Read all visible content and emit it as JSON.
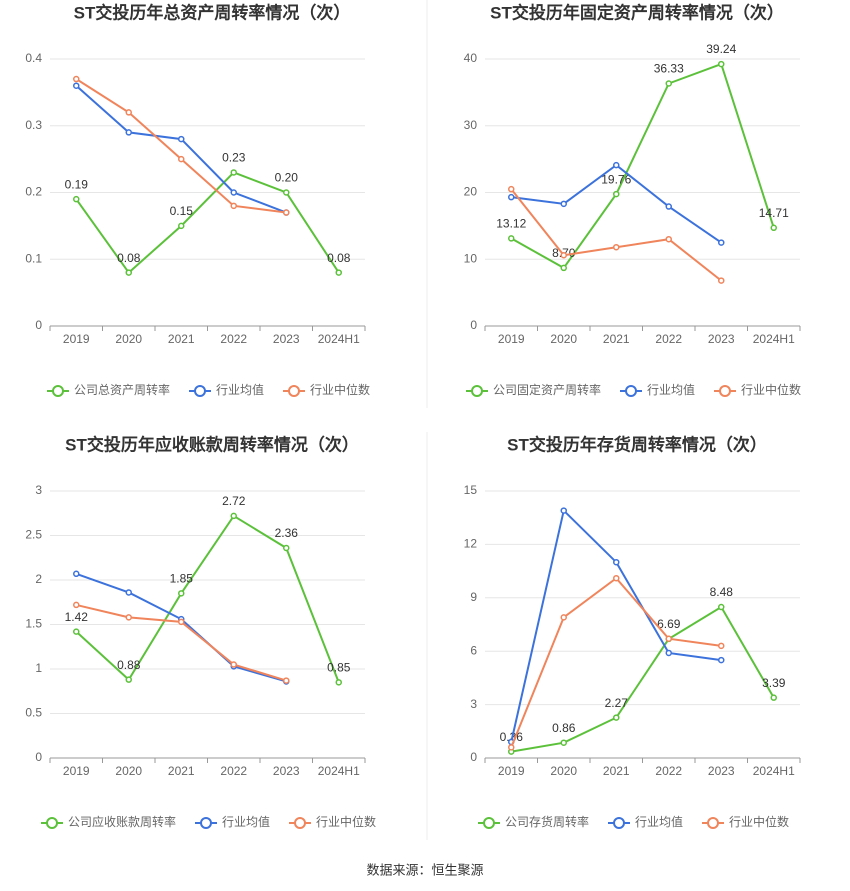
{
  "chart_data": [
    {
      "type": "line",
      "title": "ST交投历年总资产周转率情况（次）",
      "categories": [
        "2019",
        "2020",
        "2021",
        "2022",
        "2023",
        "2024H1"
      ],
      "series": [
        {
          "name": "公司总资产周转率",
          "color": "#5cc13a",
          "values": [
            0.19,
            0.08,
            0.15,
            0.23,
            0.2,
            0.08
          ],
          "value_labels": [
            "0.19",
            "0.08",
            "0.15",
            "0.23",
            "0.20",
            "0.08"
          ]
        },
        {
          "name": "行业均值",
          "color": "#3c72dc",
          "values": [
            0.36,
            0.29,
            0.28,
            0.2,
            0.17,
            null
          ]
        },
        {
          "name": "行业中位数",
          "color": "#f0845b",
          "values": [
            0.37,
            0.32,
            0.25,
            0.18,
            0.17,
            null
          ]
        }
      ],
      "ylim": [
        0,
        0.4
      ],
      "yticks": [
        0,
        0.1,
        0.2,
        0.3,
        0.4
      ],
      "grid": true
    },
    {
      "type": "line",
      "title": "ST交投历年固定资产周转率情况（次）",
      "categories": [
        "2019",
        "2020",
        "2021",
        "2022",
        "2023",
        "2024H1"
      ],
      "series": [
        {
          "name": "公司固定资产周转率",
          "color": "#5cc13a",
          "values": [
            13.12,
            8.7,
            19.76,
            36.33,
            39.24,
            14.71
          ],
          "value_labels": [
            "13.12",
            "8.70",
            "19.76",
            "36.33",
            "39.24",
            "14.71"
          ]
        },
        {
          "name": "行业均值",
          "color": "#3c72dc",
          "values": [
            19.3,
            18.3,
            24.1,
            17.9,
            12.5,
            null
          ]
        },
        {
          "name": "行业中位数",
          "color": "#f0845b",
          "values": [
            20.5,
            10.6,
            11.8,
            13.0,
            6.8,
            null
          ]
        }
      ],
      "ylim": [
        0,
        40
      ],
      "yticks": [
        0,
        10,
        20,
        30,
        40
      ],
      "grid": true
    },
    {
      "type": "line",
      "title": "ST交投历年应收账款周转率情况（次）",
      "categories": [
        "2019",
        "2020",
        "2021",
        "2022",
        "2023",
        "2024H1"
      ],
      "series": [
        {
          "name": "公司应收账款周转率",
          "color": "#5cc13a",
          "values": [
            1.42,
            0.88,
            1.85,
            2.72,
            2.36,
            0.85
          ],
          "value_labels": [
            "1.42",
            "0.88",
            "1.85",
            "2.72",
            "2.36",
            "0.85"
          ]
        },
        {
          "name": "行业均值",
          "color": "#3c72dc",
          "values": [
            2.07,
            1.86,
            1.56,
            1.03,
            0.86,
            null
          ]
        },
        {
          "name": "行业中位数",
          "color": "#f0845b",
          "values": [
            1.72,
            1.58,
            1.53,
            1.05,
            0.87,
            null
          ]
        }
      ],
      "ylim": [
        0,
        3
      ],
      "yticks": [
        0,
        0.5,
        1,
        1.5,
        2,
        2.5,
        3
      ],
      "grid": true
    },
    {
      "type": "line",
      "title": "ST交投历年存货周转率情况（次）",
      "categories": [
        "2019",
        "2020",
        "2021",
        "2022",
        "2023",
        "2024H1"
      ],
      "series": [
        {
          "name": "公司存货周转率",
          "color": "#5cc13a",
          "values": [
            0.36,
            0.86,
            2.27,
            6.69,
            8.48,
            3.39
          ],
          "value_labels": [
            "0.36",
            "0.86",
            "2.27",
            "6.69",
            "8.48",
            "3.39"
          ]
        },
        {
          "name": "行业均值",
          "color": "#3c72dc",
          "values": [
            0.9,
            13.9,
            11.0,
            5.9,
            5.5,
            null
          ]
        },
        {
          "name": "行业中位数",
          "color": "#f0845b",
          "values": [
            0.6,
            7.9,
            10.1,
            6.7,
            6.3,
            null
          ]
        }
      ],
      "ylim": [
        0,
        15
      ],
      "yticks": [
        0,
        3,
        6,
        9,
        12,
        15
      ],
      "grid": true
    }
  ],
  "footer": "数据来源：恒生聚源"
}
